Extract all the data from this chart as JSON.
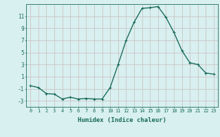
{
  "x": [
    0,
    1,
    2,
    3,
    4,
    5,
    6,
    7,
    8,
    9,
    10,
    11,
    12,
    13,
    14,
    15,
    16,
    17,
    18,
    19,
    20,
    21,
    22,
    23
  ],
  "y": [
    -0.5,
    -0.8,
    -1.8,
    -1.9,
    -2.7,
    -2.4,
    -2.7,
    -2.6,
    -2.7,
    -2.7,
    -0.8,
    3.0,
    7.0,
    10.0,
    12.3,
    12.4,
    12.6,
    10.8,
    8.3,
    5.3,
    3.3,
    3.0,
    1.6,
    1.4
  ],
  "line_color": "#1a6b5a",
  "marker": "+",
  "markersize": 3,
  "linewidth": 1.0,
  "xlabel": "Humidex (Indice chaleur)",
  "xlim": [
    -0.5,
    23.5
  ],
  "ylim": [
    -4,
    13
  ],
  "yticks": [
    -3,
    -1,
    1,
    3,
    5,
    7,
    9,
    11
  ],
  "xticks": [
    0,
    1,
    2,
    3,
    4,
    5,
    6,
    7,
    8,
    9,
    10,
    11,
    12,
    13,
    14,
    15,
    16,
    17,
    18,
    19,
    20,
    21,
    22,
    23
  ],
  "xtick_labels": [
    "0",
    "1",
    "2",
    "3",
    "4",
    "5",
    "6",
    "7",
    "8",
    "9",
    "10",
    "11",
    "12",
    "13",
    "14",
    "15",
    "16",
    "17",
    "18",
    "19",
    "20",
    "21",
    "22",
    "23"
  ],
  "bg_color": "#d8f0ef",
  "grid_color": "#c8bcbc",
  "xlabel_fontsize": 6.5,
  "xtick_fontsize": 5.0,
  "ytick_fontsize": 5.5
}
